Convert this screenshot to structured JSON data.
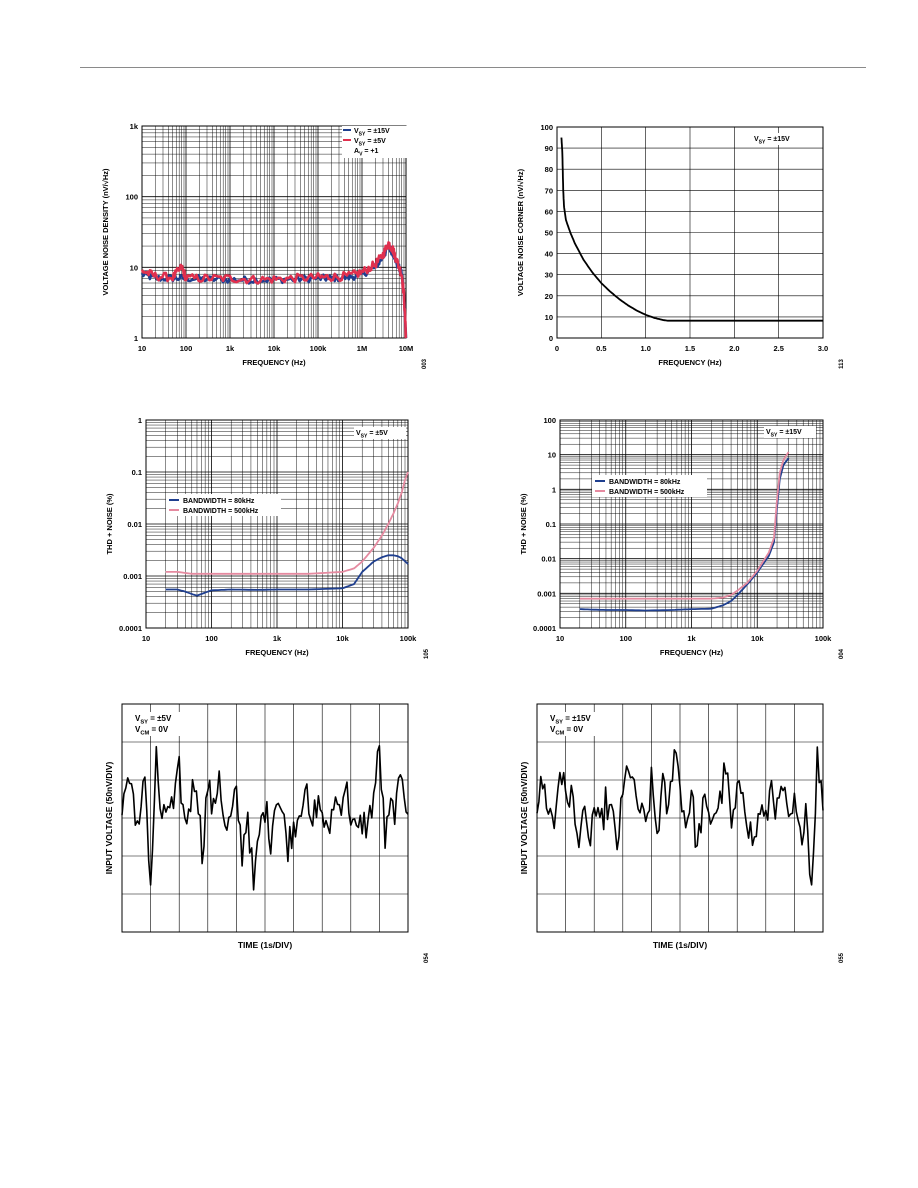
{
  "colors": {
    "blue": "#1f3f8f",
    "red": "#e0304e",
    "pink": "#e58aa0",
    "black": "#000000",
    "grid": "#000000"
  },
  "chart_data": [
    {
      "id": "chart1",
      "type": "line",
      "xscale": "log",
      "yscale": "log",
      "xlim": [
        10,
        10000000
      ],
      "ylim": [
        1,
        1000
      ],
      "xticks": [
        10,
        100,
        1000,
        10000,
        100000,
        1000000,
        10000000
      ],
      "xtick_labels": [
        "10",
        "100",
        "1k",
        "10k",
        "100k",
        "1M",
        "10M"
      ],
      "yticks": [
        1,
        10,
        100,
        1000
      ],
      "ytick_labels": [
        "1",
        "10",
        "100",
        "1k"
      ],
      "xlabel": "FREQUENCY (Hz)",
      "ylabel": "VOLTAGE NOISE DENSITY (nV/√Hz)",
      "figure_id": "003",
      "grid": true,
      "legend_position": "top-right",
      "legend": [
        {
          "label": "VSY = ±15V",
          "color_key": "blue"
        },
        {
          "label": "VSY = ±5V",
          "color_key": "red"
        },
        {
          "label": "AV = +1",
          "color_key": null
        }
      ],
      "series": [
        {
          "name": "VSY = ±15V",
          "color_key": "blue",
          "noise": 0.05,
          "x": [
            10,
            20,
            50,
            100,
            300,
            1000,
            3000,
            10000,
            30000,
            100000,
            200000,
            500000,
            1000000,
            2000000,
            3000000,
            4000000,
            5000000,
            6000000,
            8000000,
            9000000,
            10000000
          ],
          "y": [
            8,
            7,
            7,
            7,
            6.8,
            6.7,
            6.6,
            6.7,
            6.8,
            7,
            7,
            7.2,
            8,
            10,
            14,
            20,
            16,
            12,
            8,
            4,
            1
          ]
        },
        {
          "name": "VSY = ±5V",
          "color_key": "red",
          "noise": 0.06,
          "x": [
            10,
            20,
            50,
            80,
            100,
            300,
            1000,
            3000,
            10000,
            30000,
            100000,
            200000,
            500000,
            1000000,
            2000000,
            3000000,
            4000000,
            5000000,
            6000000,
            8000000,
            9000000,
            10000000
          ],
          "y": [
            9,
            7.5,
            7.2,
            10,
            7,
            7,
            7,
            6.7,
            6.8,
            7,
            7.2,
            7.3,
            7.5,
            8.5,
            11,
            15,
            22,
            18,
            13,
            8,
            4,
            1
          ]
        }
      ]
    },
    {
      "id": "chart2",
      "type": "line",
      "xscale": "linear",
      "yscale": "linear",
      "xlim": [
        0,
        3
      ],
      "ylim": [
        0,
        100
      ],
      "xticks": [
        0,
        0.5,
        1,
        1.5,
        2,
        2.5,
        3
      ],
      "xtick_labels": [
        "0",
        "0.5",
        "1.0",
        "1.5",
        "2.0",
        "2.5",
        "3.0"
      ],
      "yticks": [
        0,
        10,
        20,
        30,
        40,
        50,
        60,
        70,
        80,
        90,
        100
      ],
      "ytick_labels": [
        "0",
        "10",
        "20",
        "30",
        "40",
        "50",
        "60",
        "70",
        "80",
        "90",
        "100"
      ],
      "xlabel": "FREQUENCY (Hz)",
      "ylabel": "VOLTAGE NOISE CORNER (nV/√Hz)",
      "figure_id": "113",
      "grid": true,
      "legend_position": "top-right",
      "legend": [
        {
          "label": "VSY = ±15V",
          "color_key": null
        }
      ],
      "series": [
        {
          "color_key": "black",
          "noise": 0,
          "x": [
            0.05,
            0.06,
            0.07,
            0.08,
            0.1,
            0.15,
            0.2,
            0.3,
            0.4,
            0.5,
            0.6,
            0.7,
            0.8,
            0.9,
            1.0,
            1.1,
            1.2,
            1.25,
            1.5,
            2.0,
            2.5,
            3.0
          ],
          "y": [
            95,
            88,
            70,
            62,
            56,
            50,
            45,
            37,
            31,
            26,
            22,
            18.5,
            15.5,
            13,
            11,
            9.5,
            8.5,
            8.2,
            8.2,
            8.2,
            8.2,
            8.2
          ]
        }
      ]
    },
    {
      "id": "chart3",
      "type": "line",
      "xscale": "log",
      "yscale": "log",
      "xlim": [
        10,
        100000
      ],
      "ylim": [
        0.0001,
        1
      ],
      "xticks": [
        10,
        100,
        1000,
        10000,
        100000
      ],
      "xtick_labels": [
        "10",
        "100",
        "1k",
        "10k",
        "100k"
      ],
      "yticks": [
        0.0001,
        0.001,
        0.01,
        0.1,
        1
      ],
      "ytick_labels": [
        "0.0001",
        "0.001",
        "0.01",
        "0.1",
        "1"
      ],
      "xlabel": "FREQUENCY (Hz)",
      "ylabel": "THD + NOISE (%)",
      "figure_id": "105",
      "grid": true,
      "legend_position": "center-left",
      "legend": [
        {
          "label": "VSY = ±5V",
          "color_key": null
        },
        {
          "label": "BANDWIDTH = 80kHz",
          "color_key": "blue"
        },
        {
          "label": "BANDWIDTH = 500kHz",
          "color_key": "pink"
        }
      ],
      "series": [
        {
          "name": "BANDWIDTH = 80kHz",
          "color_key": "blue",
          "noise": 0,
          "x": [
            20,
            30,
            40,
            50,
            60,
            80,
            100,
            200,
            500,
            1000,
            3000,
            10000,
            15000,
            20000,
            30000,
            40000,
            50000,
            60000,
            70000,
            80000,
            100000
          ],
          "y": [
            0.00055,
            0.00055,
            0.0005,
            0.00045,
            0.00042,
            0.00048,
            0.00053,
            0.00055,
            0.00054,
            0.00055,
            0.00055,
            0.00058,
            0.0007,
            0.0012,
            0.0019,
            0.0023,
            0.0025,
            0.0025,
            0.0024,
            0.0022,
            0.0017
          ]
        },
        {
          "name": "BANDWIDTH = 500kHz",
          "color_key": "pink",
          "noise": 0,
          "x": [
            20,
            30,
            50,
            100,
            200,
            500,
            1000,
            3000,
            10000,
            15000,
            20000,
            30000,
            40000,
            50000,
            60000,
            70000,
            80000,
            90000,
            100000
          ],
          "y": [
            0.0012,
            0.0012,
            0.0011,
            0.0011,
            0.0011,
            0.0011,
            0.0011,
            0.0011,
            0.0012,
            0.0014,
            0.0019,
            0.0035,
            0.006,
            0.01,
            0.016,
            0.025,
            0.04,
            0.07,
            0.1
          ]
        }
      ]
    },
    {
      "id": "chart4",
      "type": "line",
      "xscale": "log",
      "yscale": "log",
      "xlim": [
        10,
        100000
      ],
      "ylim": [
        0.0001,
        100
      ],
      "xticks": [
        10,
        100,
        1000,
        10000,
        100000
      ],
      "xtick_labels": [
        "10",
        "100",
        "1k",
        "10k",
        "100k"
      ],
      "yticks": [
        0.0001,
        0.001,
        0.01,
        0.1,
        1,
        10,
        100
      ],
      "ytick_labels": [
        "0.0001",
        "0.001",
        "0.01",
        "0.1",
        "1",
        "10",
        "100"
      ],
      "xlabel": "FREQUENCY (Hz)",
      "ylabel": "THD + NOISE (%)",
      "figure_id": "004",
      "grid": true,
      "legend_position": "top-left",
      "legend": [
        {
          "label": "VSY = ±15V",
          "color_key": null
        },
        {
          "label": "BANDWIDTH = 80kHz",
          "color_key": "blue"
        },
        {
          "label": "BANDWIDTH = 500kHz",
          "color_key": "pink"
        }
      ],
      "series": [
        {
          "name": "BANDWIDTH = 80kHz",
          "color_key": "blue",
          "noise": 0,
          "x": [
            20,
            30,
            50,
            100,
            200,
            500,
            1000,
            2000,
            3000,
            4000,
            5000,
            7000,
            10000,
            15000,
            18000,
            20000,
            22000,
            25000,
            30000
          ],
          "y": [
            0.00035,
            0.00034,
            0.00033,
            0.00033,
            0.00032,
            0.00033,
            0.00035,
            0.00036,
            0.00045,
            0.0006,
            0.0009,
            0.0018,
            0.004,
            0.012,
            0.03,
            0.3,
            2,
            5,
            8
          ]
        },
        {
          "name": "BANDWIDTH = 500kHz",
          "color_key": "pink",
          "noise": 0,
          "x": [
            20,
            30,
            50,
            100,
            200,
            500,
            1000,
            2000,
            3000,
            4000,
            5000,
            7000,
            10000,
            15000,
            18000,
            20000,
            22000,
            25000,
            30000
          ],
          "y": [
            0.0007,
            0.0007,
            0.0007,
            0.0007,
            0.0007,
            0.0007,
            0.0007,
            0.0007,
            0.00075,
            0.0009,
            0.0012,
            0.002,
            0.0045,
            0.015,
            0.04,
            0.5,
            3,
            7,
            12
          ]
        }
      ]
    },
    {
      "id": "chart5",
      "type": "line",
      "xscale": "linear",
      "yscale": "linear",
      "xlim": [
        0,
        10
      ],
      "ylim": [
        -3,
        3
      ],
      "xdivs": 10,
      "ydivs": 6,
      "xlabel": "TIME (1s/DIV)",
      "ylabel": "INPUT VOLTAGE (50nV/DIV)",
      "figure_id": "054",
      "grid": true,
      "legend_position": "top-left",
      "legend": [
        {
          "label": "VSY = ±5V",
          "color_key": null
        },
        {
          "label": "VCM = 0V",
          "color_key": null
        }
      ],
      "series": [
        {
          "color_key": "black",
          "noise": 0,
          "x": [
            0,
            0.2,
            0.4,
            0.6,
            0.8,
            1,
            1.2,
            1.4,
            1.6,
            1.8,
            2,
            2.2,
            2.4,
            2.6,
            2.8,
            3,
            3.2,
            3.4,
            3.6,
            3.8,
            4,
            4.2,
            4.4,
            4.6,
            4.8,
            5,
            5.2,
            5.4,
            5.6,
            5.8,
            6,
            6.2,
            6.4,
            6.6,
            6.8,
            7,
            7.2,
            7.4,
            7.6,
            7.8,
            8,
            8.2,
            8.4,
            8.6,
            8.8,
            9,
            9.2,
            9.4,
            9.6,
            9.8,
            10
          ],
          "y": [
            0.2,
            1.1,
            0.6,
            -0.5,
            1.2,
            -1.8,
            1.6,
            -0.3,
            0.4,
            0.2,
            1.2,
            -0.2,
            0.5,
            1.1,
            -0.9,
            0.9,
            0.1,
            1.3,
            -0.4,
            -0.1,
            0.6,
            -0.9,
            0.2,
            -1.9,
            -0.4,
            0.3,
            -0.5,
            0.7,
            0.1,
            -0.7,
            -0.2,
            0.2,
            0.9,
            -0.4,
            0.4,
            0.2,
            -0.6,
            0.5,
            0.3,
            0.9,
            0.1,
            -0.5,
            -0.1,
            -0.2,
            0.6,
            1.8,
            -0.6,
            0.2,
            0.3,
            1.2,
            0.1
          ]
        }
      ]
    },
    {
      "id": "chart6",
      "type": "line",
      "xscale": "linear",
      "yscale": "linear",
      "xlim": [
        0,
        10
      ],
      "ylim": [
        -3,
        3
      ],
      "xdivs": 10,
      "ydivs": 6,
      "xlabel": "TIME (1s/DIV)",
      "ylabel": "INPUT VOLTAGE (50nV/DIV)",
      "figure_id": "055",
      "grid": true,
      "legend_position": "top-left",
      "legend": [
        {
          "label": "VSY = ±15V",
          "color_key": null
        },
        {
          "label": "VCM = 0V",
          "color_key": null
        }
      ],
      "series": [
        {
          "color_key": "black",
          "noise": 0,
          "x": [
            0,
            0.2,
            0.4,
            0.6,
            0.8,
            1,
            1.2,
            1.4,
            1.6,
            1.8,
            2,
            2.2,
            2.4,
            2.6,
            2.8,
            3,
            3.2,
            3.4,
            3.6,
            3.8,
            4,
            4.2,
            4.4,
            4.6,
            4.8,
            5,
            5.2,
            5.4,
            5.6,
            5.8,
            6,
            6.2,
            6.4,
            6.6,
            6.8,
            7,
            7.2,
            7.4,
            7.6,
            7.8,
            8,
            8.2,
            8.4,
            8.6,
            8.8,
            9,
            9.2,
            9.4,
            9.6,
            9.8,
            10
          ],
          "y": [
            0.4,
            0.9,
            0.3,
            -0.2,
            1.4,
            0.5,
            0.7,
            -0.6,
            0.2,
            -0.8,
            0.3,
            -0.4,
            0.4,
            0.1,
            -0.7,
            0.5,
            1.5,
            0.6,
            0.2,
            -0.3,
            0.9,
            -0.4,
            0.8,
            0.1,
            2.0,
            0.9,
            -0.2,
            0.7,
            -0.9,
            0.4,
            -0.1,
            0.2,
            0.4,
            1.4,
            -0.3,
            0.5,
            0.9,
            -0.2,
            -0.7,
            0.3,
            -0.2,
            1.0,
            0.1,
            0.8,
            -0.3,
            0.3,
            -0.6,
            0.4,
            -1.8,
            1.6,
            0.2
          ]
        }
      ]
    }
  ]
}
